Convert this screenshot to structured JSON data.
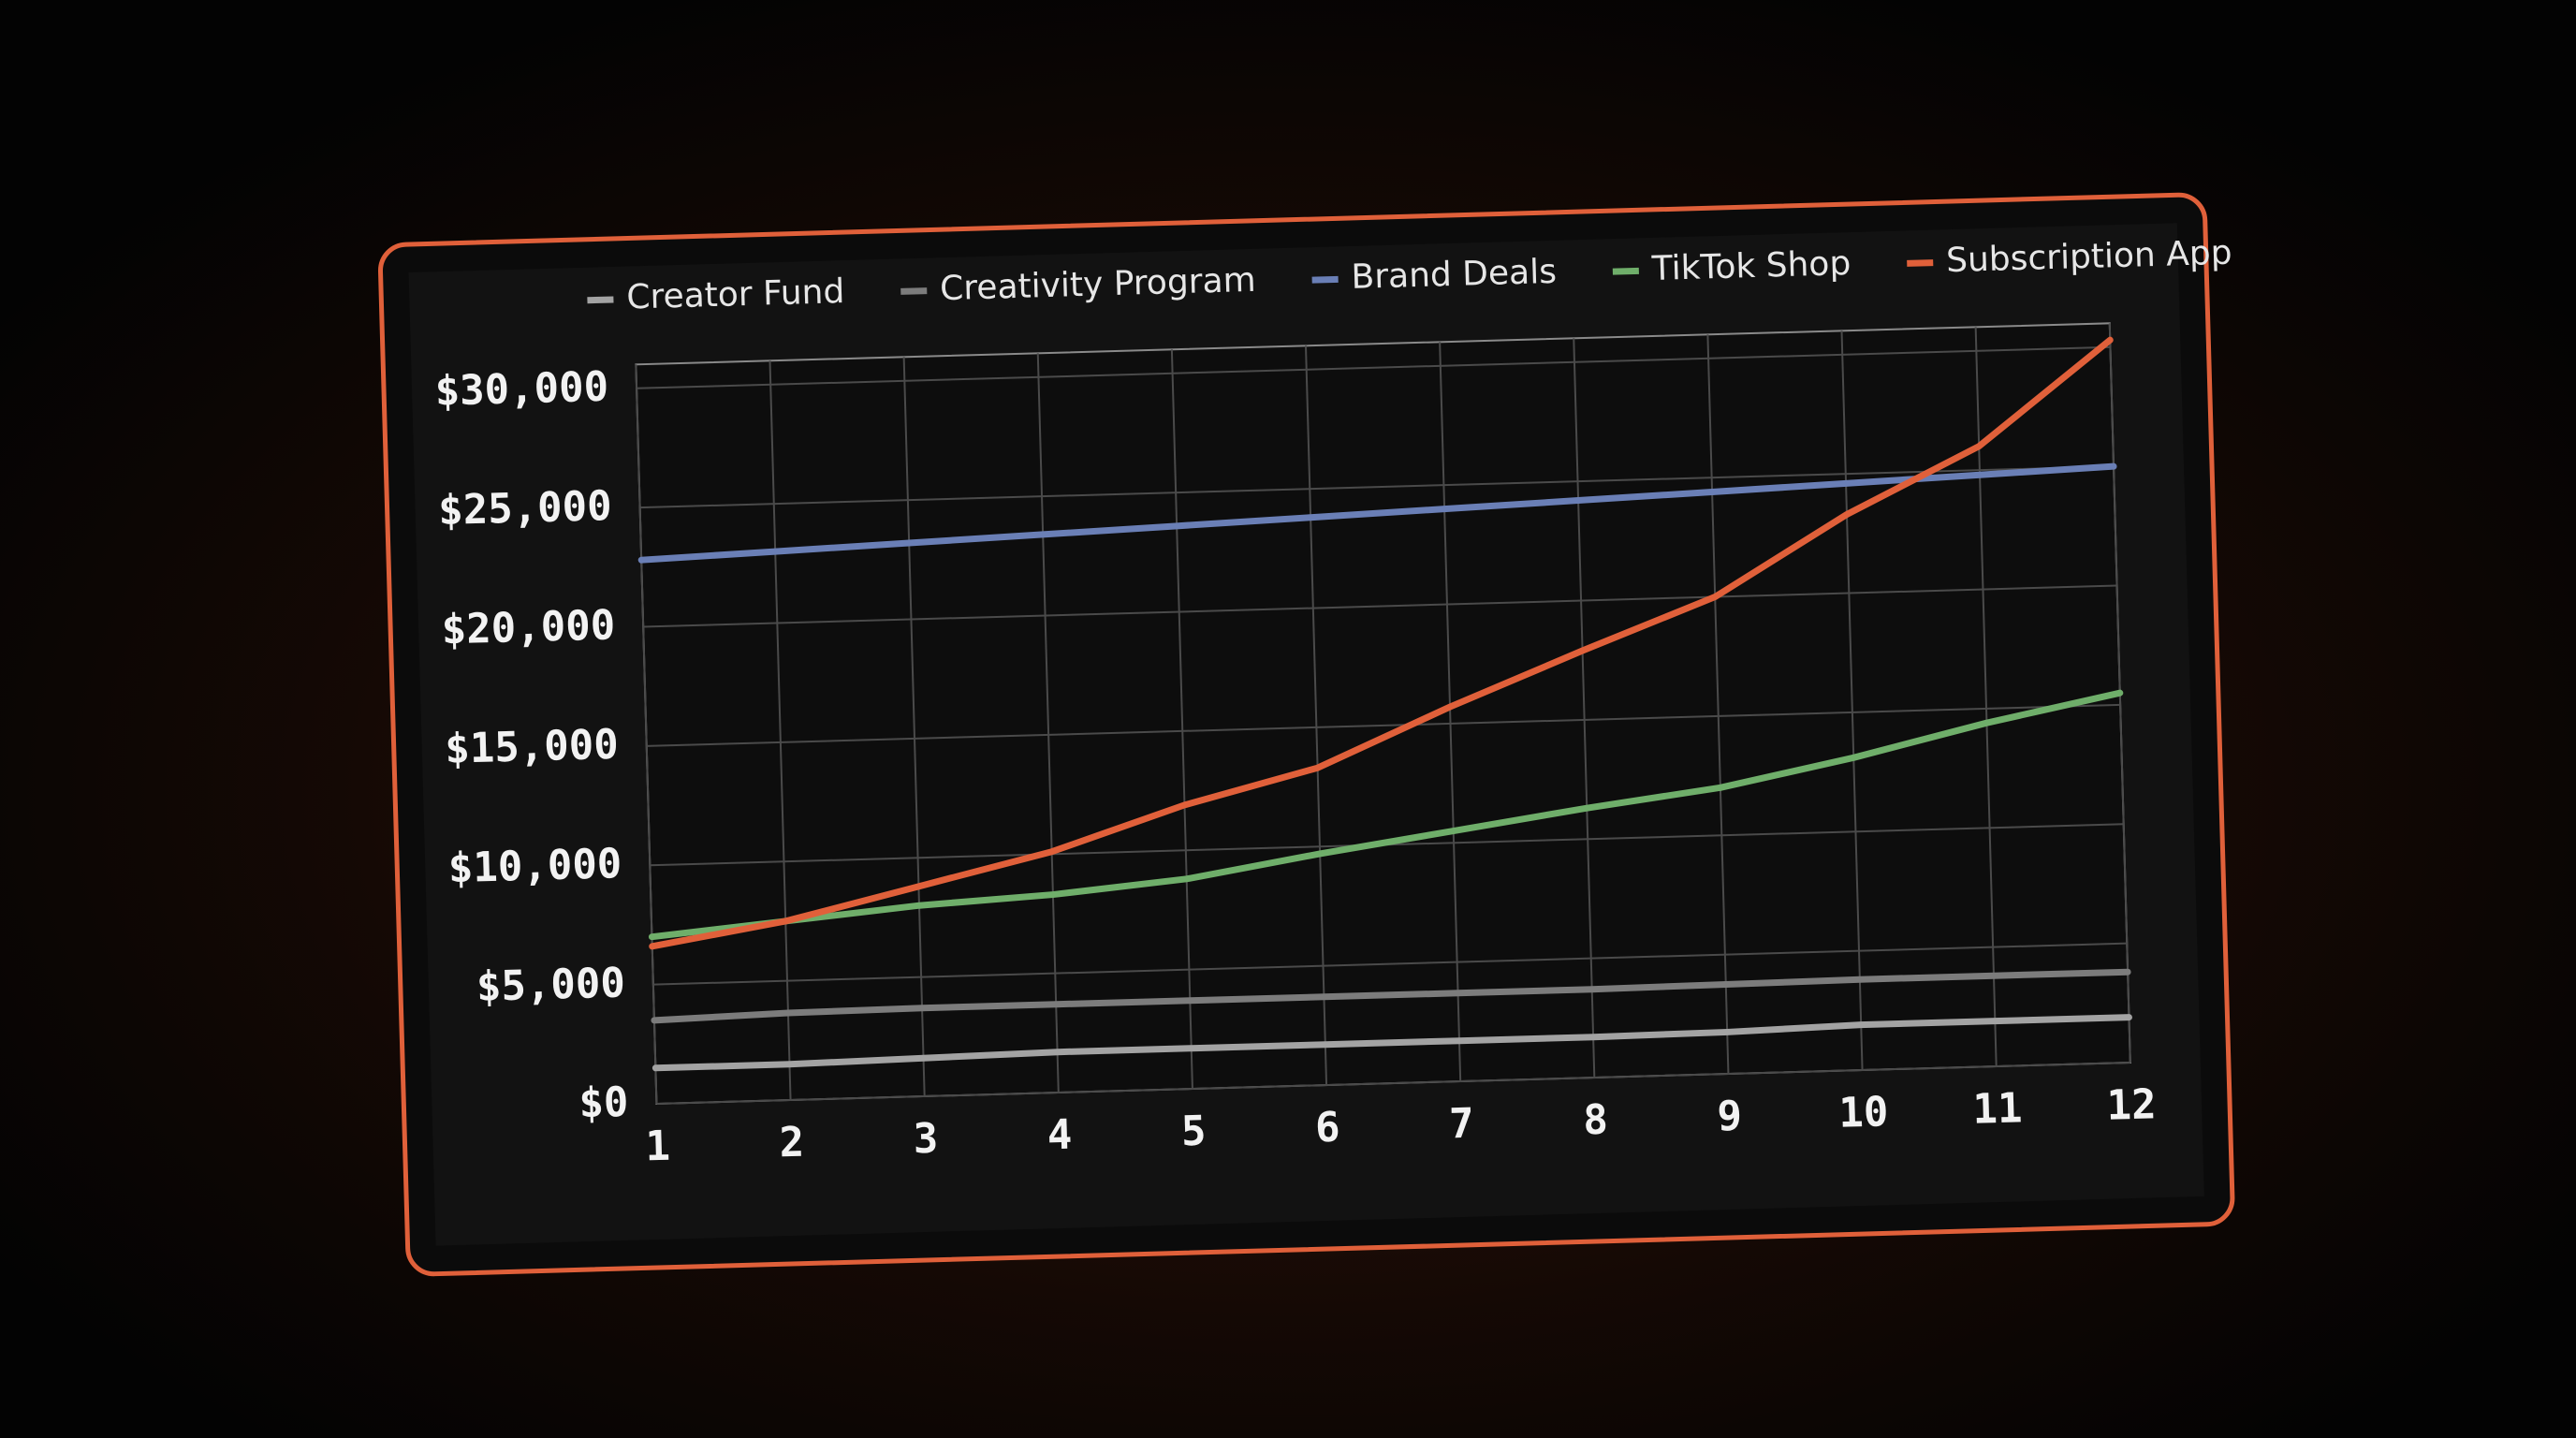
{
  "chart_data": {
    "type": "line",
    "x": [
      1,
      2,
      3,
      4,
      5,
      6,
      7,
      8,
      9,
      10,
      11,
      12
    ],
    "xlim": [
      1,
      12
    ],
    "xticks": [
      1,
      2,
      3,
      4,
      5,
      6,
      7,
      8,
      9,
      10,
      11,
      12
    ],
    "ylim": [
      0,
      31000
    ],
    "yticks": [
      {
        "value": 0,
        "label": "$0"
      },
      {
        "value": 5000,
        "label": "$5,000"
      },
      {
        "value": 10000,
        "label": "$10,000"
      },
      {
        "value": 15000,
        "label": "$15,000"
      },
      {
        "value": 20000,
        "label": "$20,000"
      },
      {
        "value": 25000,
        "label": "$25,000"
      },
      {
        "value": 30000,
        "label": "$30,000"
      }
    ],
    "grid": true,
    "legend": "top",
    "series": [
      {
        "name": "Creator Fund",
        "color": "#a3a3a3",
        "values": [
          1500,
          1500,
          1600,
          1700,
          1700,
          1700,
          1700,
          1700,
          1750,
          1900,
          1900,
          1900
        ]
      },
      {
        "name": "Creativity Program",
        "color": "#7c7c7c",
        "values": [
          3500,
          3650,
          3700,
          3700,
          3700,
          3700,
          3700,
          3700,
          3750,
          3800,
          3800,
          3800
        ]
      },
      {
        "name": "Brand Deals",
        "color": "#6a7fb6",
        "values": [
          22800,
          23000,
          23200,
          23400,
          23600,
          23800,
          24000,
          24200,
          24400,
          24600,
          24800,
          25000
        ]
      },
      {
        "name": "TikTok Shop",
        "color": "#6fae6a",
        "values": [
          7000,
          7500,
          8000,
          8300,
          8800,
          9700,
          10500,
          11300,
          12000,
          13100,
          14400,
          15500
        ]
      },
      {
        "name": "Subscription App",
        "color": "#e0603a",
        "values": [
          6600,
          7500,
          8800,
          10100,
          11900,
          13300,
          15700,
          17900,
          20000,
          23300,
          26000,
          30300
        ]
      }
    ]
  }
}
